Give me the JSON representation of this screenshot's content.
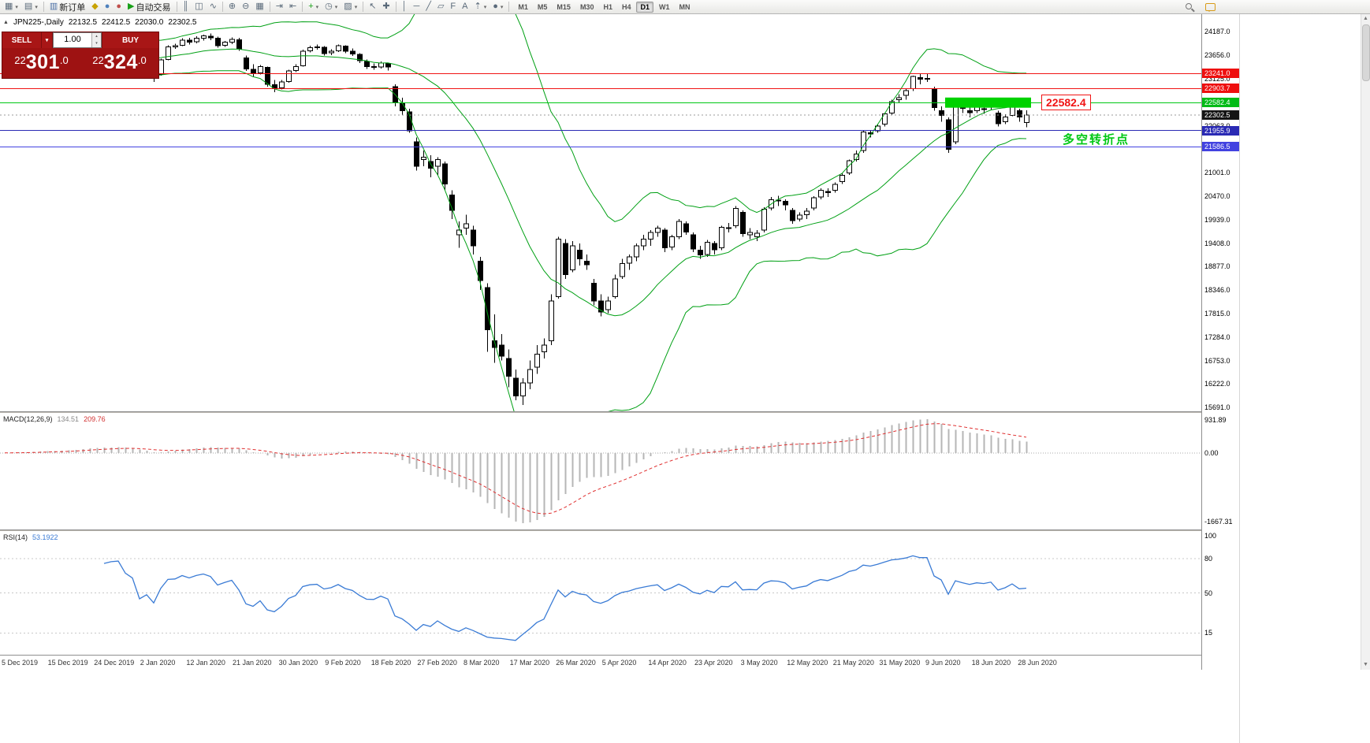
{
  "icons": {
    "collapse_triangle": "▲",
    "dropdown": "▾",
    "spinner_up": "▴",
    "spinner_down": "▾",
    "scroll_up": "▲",
    "scroll_down": "▼"
  },
  "toolbar": {
    "items": [
      {
        "type": "icon",
        "name": "new-chart-button",
        "glyph": "▦",
        "drop": true
      },
      {
        "type": "icon",
        "name": "profiles-button",
        "glyph": "▤",
        "drop": true
      },
      {
        "type": "sep"
      },
      {
        "type": "button",
        "name": "new-order-button",
        "glyph": "▥",
        "color": "#4a6fa5",
        "label": "新订单"
      },
      {
        "type": "icon",
        "name": "metaeditor-button",
        "glyph": "◆",
        "color": "#c8a200"
      },
      {
        "type": "icon",
        "name": "terminal-button",
        "glyph": "●",
        "color": "#4f81bd"
      },
      {
        "type": "icon",
        "name": "alerts-button",
        "glyph": "●",
        "color": "#c0504d"
      },
      {
        "type": "button",
        "name": "auto-trading-button",
        "glyph": "▶",
        "color": "#18a018",
        "label": "自动交易"
      },
      {
        "type": "sep"
      },
      {
        "type": "icon",
        "name": "bar-chart-mode-button",
        "glyph": "║"
      },
      {
        "type": "icon",
        "name": "candlestick-mode-button",
        "glyph": "◫"
      },
      {
        "type": "icon",
        "name": "line-chart-mode-button",
        "glyph": "∿"
      },
      {
        "type": "sep"
      },
      {
        "type": "icon",
        "name": "zoom-in-button",
        "glyph": "⊕"
      },
      {
        "type": "icon",
        "name": "zoom-out-button",
        "glyph": "⊖"
      },
      {
        "type": "icon",
        "name": "tile-windows-button",
        "glyph": "▦"
      },
      {
        "type": "sep"
      },
      {
        "type": "icon",
        "name": "auto-scroll-button",
        "glyph": "⇥"
      },
      {
        "type": "icon",
        "name": "chart-shift-button",
        "glyph": "⇤"
      },
      {
        "type": "sep"
      },
      {
        "type": "icon",
        "name": "indicators-button",
        "glyph": "+",
        "color": "#18a018",
        "drop": true
      },
      {
        "type": "icon",
        "name": "periods-button",
        "glyph": "◷",
        "drop": true
      },
      {
        "type": "icon",
        "name": "templates-button",
        "glyph": "▨",
        "drop": true
      },
      {
        "type": "sep"
      },
      {
        "type": "icon",
        "name": "cursor-tool-button",
        "glyph": "↖"
      },
      {
        "type": "icon",
        "name": "crosshair-tool-button",
        "glyph": "✚"
      },
      {
        "type": "sep"
      },
      {
        "type": "icon",
        "name": "vertical-line-tool-button",
        "glyph": "│"
      },
      {
        "type": "icon",
        "name": "horizontal-line-tool-button",
        "glyph": "─"
      },
      {
        "type": "icon",
        "name": "trendline-tool-button",
        "glyph": "╱"
      },
      {
        "type": "icon",
        "name": "channel-tool-button",
        "glyph": "▱"
      },
      {
        "type": "icon",
        "name": "fibonacci-tool-button",
        "glyph": "F"
      },
      {
        "type": "icon",
        "name": "text-tool-button",
        "glyph": "A"
      },
      {
        "type": "icon",
        "name": "arrows-tool-button",
        "glyph": "⇡",
        "drop": true
      },
      {
        "type": "icon",
        "name": "shapes-tool-button",
        "glyph": "●",
        "drop": true
      },
      {
        "type": "sep"
      },
      {
        "type": "timeframes"
      }
    ],
    "timeframes": [
      "M1",
      "M5",
      "M15",
      "M30",
      "H1",
      "H4",
      "D1",
      "W1",
      "MN"
    ],
    "active_timeframe": "D1"
  },
  "symbol_info": {
    "symbol": "JPN225-,Daily",
    "open": "22132.5",
    "high": "22412.5",
    "low": "22030.0",
    "close": "22302.5"
  },
  "trade_panel": {
    "sell_label": "SELL",
    "buy_label": "BUY",
    "lot_value": "1.00",
    "sell_price": "22301.0",
    "buy_price": "22324.0",
    "panel_color": "#a81616"
  },
  "price_axis": {
    "ticks": [
      24187,
      23656,
      23125,
      22594,
      22063,
      21532,
      21001,
      20470,
      19939,
      19408,
      18877,
      18346,
      17815,
      17284,
      16753,
      16222,
      15691
    ],
    "tags": [
      {
        "label": "23241.0",
        "price": 23241.0,
        "bg": "#ee0f0f"
      },
      {
        "label": "22903.7",
        "price": 22903.7,
        "bg": "#ee0f0f"
      },
      {
        "label": "22582.4",
        "price": 22582.4,
        "bg": "#00bb16"
      },
      {
        "label": "21955.9",
        "price": 21955.9,
        "bg": "#2a2ab4"
      },
      {
        "label": "21586.5",
        "price": 21586.5,
        "bg": "#4242e0"
      }
    ],
    "current": {
      "label": "22302.5",
      "price": 22302.5,
      "bg": "#141414"
    }
  },
  "levels": [
    {
      "price": 23241.0,
      "color": "#f01414"
    },
    {
      "price": 22903.7,
      "color": "#f01414"
    },
    {
      "price": 22582.4,
      "color": "#00c814"
    },
    {
      "price": 21955.9,
      "color": "#2a2ab4"
    },
    {
      "price": 21586.5,
      "color": "#4242e0"
    }
  ],
  "green_zone": {
    "price_top": 22700,
    "price_bottom": 22470,
    "start_index": 133,
    "end_index": 144,
    "color": "#00d200"
  },
  "annotations": {
    "price_callout": "22582.4",
    "callout_color": "#f01414",
    "note": "多空转折点",
    "note_color": "#00c814"
  },
  "macd": {
    "title": "MACD(12,26,9)",
    "value": "134.51",
    "signal_value": "209.76",
    "axis_max": "931.89",
    "axis_zero": "0.00",
    "axis_min": "-1667.31",
    "histogram_color": "#b6b6b6",
    "signal_color": "#e03030"
  },
  "rsi": {
    "title": "RSI(14)",
    "value": "53.1922",
    "levels": [
      100,
      80,
      50,
      15
    ],
    "line_color": "#3a7bd5"
  },
  "dates": [
    "5 Dec 2019",
    "15 Dec 2019",
    "24 Dec 2019",
    "2 Jan 2020",
    "12 Jan 2020",
    "21 Jan 2020",
    "30 Jan 2020",
    "9 Feb 2020",
    "18 Feb 2020",
    "27 Feb 2020",
    "8 Mar 2020",
    "17 Mar 2020",
    "26 Mar 2020",
    "5 Apr 2020",
    "14 Apr 2020",
    "23 Apr 2020",
    "3 May 2020",
    "12 May 2020",
    "21 May 2020",
    "31 May 2020",
    "9 Jun 2020",
    "18 Jun 2020",
    "28 Jun 2020"
  ],
  "chart_data": {
    "type": "candlestick",
    "symbol": "JPN225-",
    "period": "Daily",
    "up_color": "#ffffff",
    "down_color": "#000000",
    "outline_color": "#000000",
    "bollinger": {
      "period": 20,
      "deviation": 2,
      "color": "#00a014"
    },
    "ohlc": [
      [
        23260,
        23340,
        23180,
        23300
      ],
      [
        23300,
        23400,
        23260,
        23350
      ],
      [
        23360,
        23460,
        23310,
        23420
      ],
      [
        23420,
        23470,
        23330,
        23390
      ],
      [
        23390,
        23490,
        23350,
        23450
      ],
      [
        23455,
        23560,
        23420,
        23520
      ],
      [
        23525,
        23600,
        23470,
        23550
      ],
      [
        23545,
        23580,
        23370,
        23410
      ],
      [
        23420,
        23560,
        23390,
        23520
      ],
      [
        23530,
        23690,
        23500,
        23650
      ],
      [
        23655,
        23750,
        23610,
        23700
      ],
      [
        23705,
        23850,
        23680,
        23810
      ],
      [
        23815,
        23900,
        23770,
        23850
      ],
      [
        23850,
        23890,
        23770,
        23830
      ],
      [
        23830,
        23870,
        23740,
        23790
      ],
      [
        23790,
        23880,
        23750,
        23850
      ],
      [
        23855,
        23920,
        23810,
        23870
      ],
      [
        23865,
        23900,
        23700,
        23740
      ],
      [
        23735,
        23790,
        23640,
        23680
      ],
      [
        23400,
        23450,
        23250,
        23320
      ],
      [
        23330,
        23450,
        23280,
        23400
      ],
      [
        23250,
        23320,
        23050,
        23200
      ],
      [
        23220,
        23580,
        23200,
        23550
      ],
      [
        23560,
        23880,
        23540,
        23850
      ],
      [
        23850,
        23920,
        23800,
        23870
      ],
      [
        23880,
        24040,
        23860,
        24000
      ],
      [
        24000,
        24050,
        23900,
        23950
      ],
      [
        23960,
        24090,
        23930,
        24040
      ],
      [
        24045,
        24120,
        23990,
        24100
      ],
      [
        24090,
        24150,
        24000,
        24050
      ],
      [
        24040,
        24080,
        23830,
        23870
      ],
      [
        23880,
        23980,
        23850,
        23950
      ],
      [
        23950,
        24060,
        23910,
        24020
      ],
      [
        24010,
        24050,
        23760,
        23800
      ],
      [
        23600,
        23650,
        23300,
        23350
      ],
      [
        23340,
        23450,
        23180,
        23250
      ],
      [
        23260,
        23440,
        23220,
        23400
      ],
      [
        23380,
        23400,
        22950,
        23000
      ],
      [
        22990,
        23100,
        22820,
        22900
      ],
      [
        22920,
        23100,
        22880,
        23050
      ],
      [
        23060,
        23330,
        23040,
        23300
      ],
      [
        23310,
        23450,
        23280,
        23400
      ],
      [
        23420,
        23780,
        23400,
        23750
      ],
      [
        23760,
        23870,
        23720,
        23830
      ],
      [
        23835,
        23900,
        23780,
        23850
      ],
      [
        23840,
        23860,
        23650,
        23700
      ],
      [
        23710,
        23790,
        23660,
        23750
      ],
      [
        23760,
        23900,
        23730,
        23870
      ],
      [
        23860,
        23880,
        23700,
        23750
      ],
      [
        23745,
        23810,
        23640,
        23690
      ],
      [
        23680,
        23700,
        23480,
        23530
      ],
      [
        23520,
        23560,
        23350,
        23400
      ],
      [
        23400,
        23470,
        23330,
        23390
      ],
      [
        23395,
        23520,
        23360,
        23480
      ],
      [
        23470,
        23490,
        23310,
        23390
      ],
      [
        22950,
        23000,
        22500,
        22600
      ],
      [
        22580,
        22700,
        22300,
        22400
      ],
      [
        22380,
        22450,
        21900,
        21950
      ],
      [
        21700,
        21800,
        21050,
        21150
      ],
      [
        21300,
        21500,
        21150,
        21350
      ],
      [
        21250,
        21400,
        20900,
        21100
      ],
      [
        21150,
        21350,
        20950,
        21300
      ],
      [
        21200,
        21250,
        20600,
        20750
      ],
      [
        20500,
        20600,
        19950,
        20150
      ],
      [
        19600,
        19900,
        19300,
        19700
      ],
      [
        19750,
        20050,
        19600,
        19850
      ],
      [
        19700,
        19800,
        19150,
        19350
      ],
      [
        19000,
        19100,
        18350,
        18560
      ],
      [
        18400,
        18500,
        16950,
        17450
      ],
      [
        17200,
        17800,
        16700,
        17050
      ],
      [
        17100,
        17350,
        16750,
        16850
      ],
      [
        16800,
        17000,
        16150,
        16400
      ],
      [
        16350,
        16550,
        15850,
        15950
      ],
      [
        15950,
        16350,
        15750,
        16250
      ],
      [
        16250,
        16750,
        16100,
        16550
      ],
      [
        16600,
        17100,
        16450,
        16900
      ],
      [
        16950,
        17250,
        16800,
        17100
      ],
      [
        17200,
        18250,
        17100,
        18100
      ],
      [
        18200,
        19550,
        18150,
        19500
      ],
      [
        19400,
        19500,
        18600,
        18700
      ],
      [
        18800,
        19450,
        18750,
        19350
      ],
      [
        19250,
        19400,
        18900,
        19050
      ],
      [
        19000,
        19150,
        18800,
        18920
      ],
      [
        18500,
        18600,
        18000,
        18100
      ],
      [
        18100,
        18250,
        17750,
        17850
      ],
      [
        17900,
        18200,
        17820,
        18100
      ],
      [
        18200,
        18700,
        18150,
        18600
      ],
      [
        18650,
        19050,
        18600,
        18950
      ],
      [
        18960,
        19150,
        18800,
        19100
      ],
      [
        19100,
        19400,
        19000,
        19350
      ],
      [
        19350,
        19600,
        19250,
        19500
      ],
      [
        19500,
        19700,
        19350,
        19650
      ],
      [
        19650,
        19800,
        19550,
        19750
      ],
      [
        19700,
        19750,
        19200,
        19300
      ],
      [
        19320,
        19600,
        19250,
        19550
      ],
      [
        19550,
        19950,
        19500,
        19900
      ],
      [
        19850,
        19900,
        19600,
        19660
      ],
      [
        19600,
        19650,
        19200,
        19280
      ],
      [
        19250,
        19350,
        19050,
        19140
      ],
      [
        19150,
        19480,
        19100,
        19430
      ],
      [
        19400,
        19450,
        19150,
        19260
      ],
      [
        19300,
        19800,
        19250,
        19770
      ],
      [
        19760,
        19860,
        19650,
        19740
      ],
      [
        19800,
        20250,
        19750,
        20190
      ],
      [
        20100,
        20150,
        19550,
        19620
      ],
      [
        19600,
        19750,
        19500,
        19650
      ],
      [
        19550,
        19700,
        19450,
        19630
      ],
      [
        19700,
        20220,
        19650,
        20180
      ],
      [
        20200,
        20450,
        20150,
        20390
      ],
      [
        20380,
        20480,
        20250,
        20370
      ],
      [
        20350,
        20400,
        20150,
        20270
      ],
      [
        20150,
        20200,
        19850,
        19920
      ],
      [
        19950,
        20100,
        19900,
        20040
      ],
      [
        20050,
        20200,
        19950,
        20130
      ],
      [
        20200,
        20470,
        20150,
        20430
      ],
      [
        20450,
        20650,
        20400,
        20600
      ],
      [
        20580,
        20650,
        20450,
        20550
      ],
      [
        20600,
        20780,
        20550,
        20740
      ],
      [
        20800,
        20990,
        20750,
        20940
      ],
      [
        21000,
        21300,
        20950,
        21270
      ],
      [
        21300,
        21500,
        21250,
        21420
      ],
      [
        21500,
        21950,
        21450,
        21920
      ],
      [
        21900,
        21970,
        21800,
        21880
      ],
      [
        21950,
        22100,
        21900,
        22060
      ],
      [
        22100,
        22360,
        22050,
        22330
      ],
      [
        22350,
        22650,
        22300,
        22610
      ],
      [
        22650,
        22780,
        22580,
        22700
      ],
      [
        22750,
        22900,
        22650,
        22860
      ],
      [
        22900,
        23200,
        22850,
        23180
      ],
      [
        23150,
        23250,
        23000,
        23120
      ],
      [
        23130,
        23230,
        23050,
        23125
      ],
      [
        22900,
        22950,
        22400,
        22470
      ],
      [
        22400,
        22500,
        22150,
        22300
      ],
      [
        22200,
        22250,
        21450,
        21530
      ],
      [
        21700,
        22600,
        21650,
        22580
      ],
      [
        22550,
        22650,
        22350,
        22455
      ],
      [
        22400,
        22500,
        22250,
        22355
      ],
      [
        22400,
        22560,
        22350,
        22480
      ],
      [
        22450,
        22540,
        22330,
        22440
      ],
      [
        22500,
        22620,
        22430,
        22550
      ],
      [
        22350,
        22400,
        22050,
        22110
      ],
      [
        22150,
        22320,
        22100,
        22260
      ],
      [
        22300,
        22580,
        22280,
        22530
      ],
      [
        22400,
        22450,
        22150,
        22260
      ],
      [
        22132.5,
        22412.5,
        22030,
        22302.5
      ]
    ]
  }
}
